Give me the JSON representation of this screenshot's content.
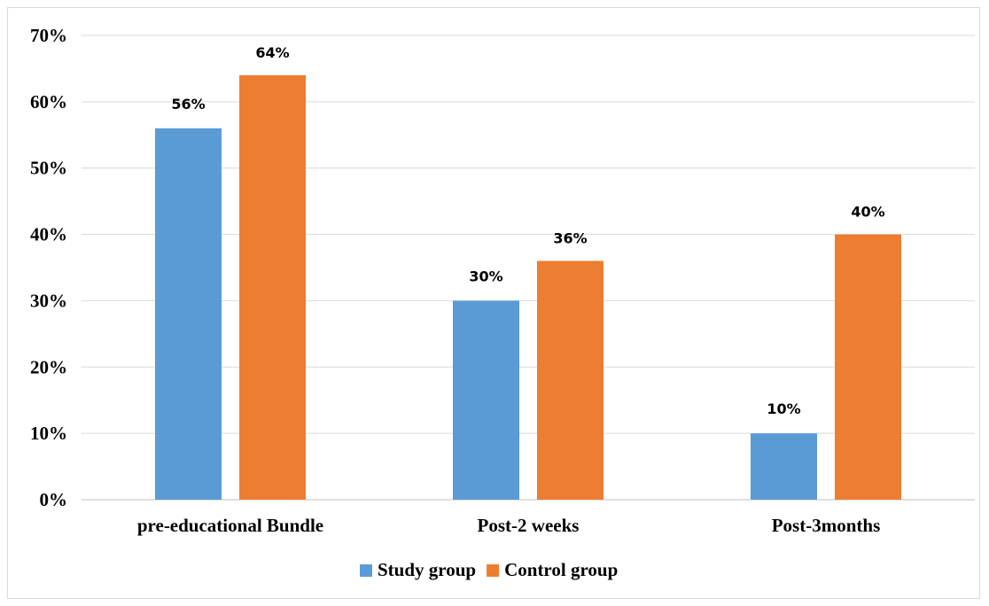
{
  "chart_data": {
    "type": "bar",
    "categories": [
      "pre-educational Bundle",
      "Post-2 weeks",
      "Post-3months"
    ],
    "series": [
      {
        "name": "Study group",
        "values": [
          56,
          30,
          10
        ],
        "color": "#5b9bd5"
      },
      {
        "name": "Control group",
        "values": [
          64,
          36,
          40
        ],
        "color": "#ed7d31"
      }
    ],
    "data_labels": [
      [
        "56%",
        "30%",
        "10%"
      ],
      [
        "64%",
        "36%",
        "40%"
      ]
    ],
    "ylim": [
      0,
      70
    ],
    "yticks": [
      0,
      10,
      20,
      30,
      40,
      50,
      60,
      70
    ],
    "ytick_labels": [
      "0%",
      "10%",
      "20%",
      "30%",
      "40%",
      "50%",
      "60%",
      "70%"
    ],
    "grid": true,
    "gridline_color": "#d9d9d9",
    "legend_position": "bottom"
  }
}
